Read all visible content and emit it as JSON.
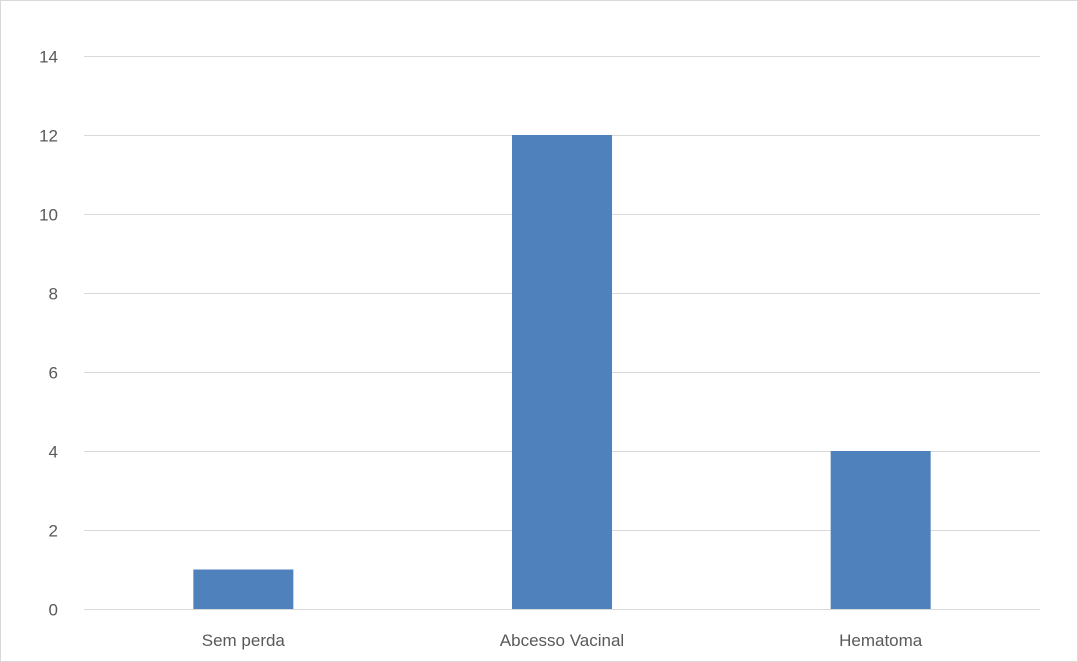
{
  "chart_data": {
    "type": "bar",
    "categories": [
      "Sem perda",
      "Abcesso Vacinal",
      "Hematoma"
    ],
    "values": [
      1,
      12,
      4
    ],
    "ylim": [
      0,
      14
    ],
    "yticks": [
      0,
      2,
      4,
      6,
      8,
      10,
      12,
      14
    ],
    "title": "",
    "xlabel": "",
    "ylabel": "",
    "grid": true,
    "legend": "none",
    "colors": {
      "bar": "#4f81bd",
      "grid": "#d9d9d9",
      "tick_text": "#595959",
      "frame": "#d9d9d9"
    }
  }
}
